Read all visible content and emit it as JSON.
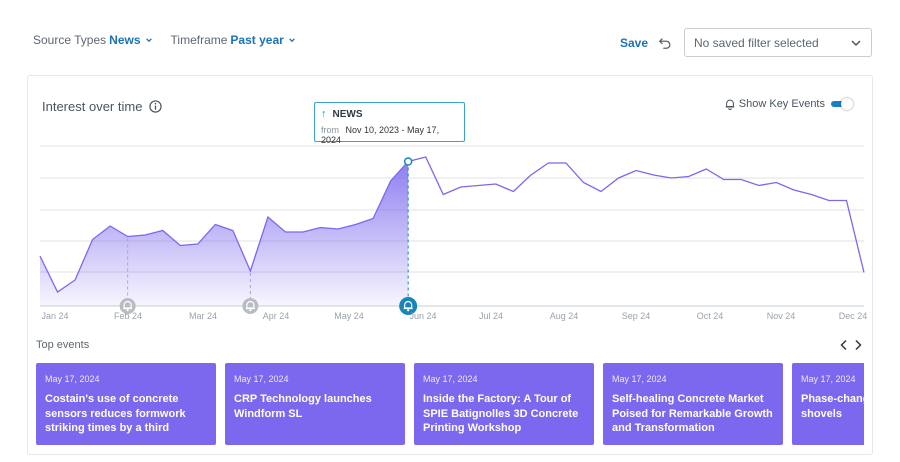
{
  "filters": {
    "source": {
      "label": "Source Types",
      "value": "News"
    },
    "timeframe": {
      "label": "Timeframe",
      "value": "Past year"
    }
  },
  "toolbar": {
    "save_label": "Save",
    "saved_filter_value": "No saved filter selected"
  },
  "card": {
    "title": "Interest over time",
    "show_key_events_label": "Show Key Events",
    "show_key_events_on": true
  },
  "tooltip": {
    "series": "NEWS",
    "from_label": "from",
    "range": "Nov 10, 2023 - May 17, 2024"
  },
  "top_events_label": "Top events",
  "events": [
    {
      "date": "May 17, 2024",
      "title": "Costain's use of concrete sensors reduces formwork striking times by a third"
    },
    {
      "date": "May 17, 2024",
      "title": "CRP Technology launches Windform SL"
    },
    {
      "date": "May 17, 2024",
      "title": "Inside the Factory: A Tour of SPIE Batignolles 3D Concrete Printing Workshop"
    },
    {
      "date": "May 17, 2024",
      "title": "Self-healing Concrete Market Poised for Remarkable Growth and Transformation"
    },
    {
      "date": "May 17, 2024",
      "title": "Phase-change snow and ice shovels"
    }
  ],
  "colors": {
    "accent": "#1a73b5",
    "series": "#7b68ee",
    "event_card": "#7b68ee",
    "marker": "#1a86b8"
  },
  "chart_data": {
    "type": "area",
    "x_ticks": [
      "Jan 24",
      "Feb 24",
      "Mar 24",
      "Apr 24",
      "May 24",
      "Jun 24",
      "Jul 24",
      "Aug 24",
      "Sep 24",
      "Oct 24",
      "Nov 24",
      "Dec 24"
    ],
    "series": [
      {
        "name": "NEWS",
        "values": [
          32,
          8,
          16,
          43,
          52,
          45,
          46,
          49,
          39,
          40,
          53,
          49,
          22,
          58,
          48,
          48,
          51,
          50,
          53,
          57,
          82,
          95,
          98,
          73,
          78,
          79,
          80,
          75,
          86,
          94,
          94,
          81,
          75,
          84,
          89,
          86,
          84,
          85,
          90,
          83,
          83,
          79,
          81,
          76,
          73,
          69,
          69,
          21
        ]
      }
    ],
    "highlight_index": 21,
    "key_event_indices": [
      5,
      12,
      21
    ],
    "grid": true,
    "legend": "none"
  }
}
